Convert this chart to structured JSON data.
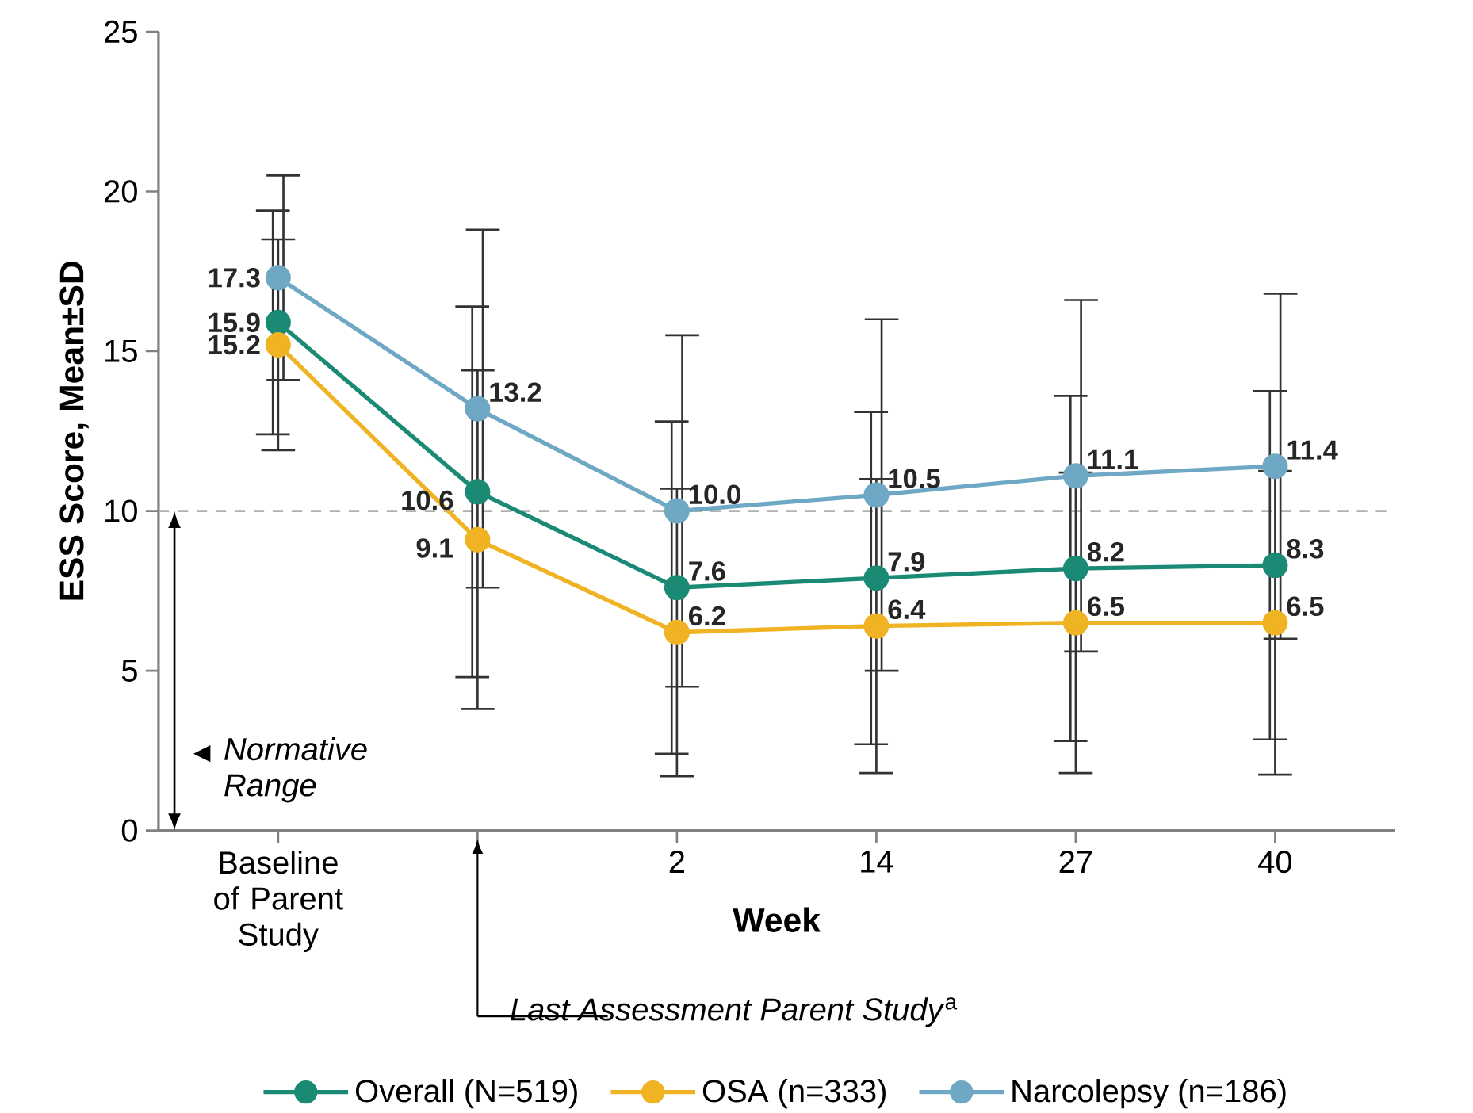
{
  "chart_data": {
    "type": "line",
    "xlabel": "Week",
    "ylabel": "ESS Score, Mean±SD",
    "categories": [
      "Baseline of Parent Study",
      null,
      "2",
      "14",
      "27",
      "40"
    ],
    "series": [
      {
        "name": "Overall (N=519)",
        "color": "#1a8a74",
        "values": [
          15.9,
          10.6,
          7.6,
          7.9,
          8.2,
          8.3
        ],
        "errors": [
          3.5,
          5.8,
          5.2,
          5.2,
          5.4,
          5.45
        ],
        "value_labels": [
          "15.9",
          "10.6",
          "7.6",
          "7.9",
          "8.2",
          "8.3"
        ]
      },
      {
        "name": "OSA (n=333)",
        "color": "#f0b323",
        "values": [
          15.2,
          9.1,
          6.2,
          6.4,
          6.5,
          6.5
        ],
        "errors": [
          3.3,
          5.3,
          4.5,
          4.6,
          4.7,
          4.75
        ],
        "value_labels": [
          "15.2",
          "9.1",
          "6.2",
          "6.4",
          "6.5",
          "6.5"
        ]
      },
      {
        "name": "Narcolepsy (n=186)",
        "color": "#6fa8c4",
        "values": [
          17.3,
          13.2,
          10.0,
          10.5,
          11.1,
          11.4
        ],
        "errors": [
          3.2,
          5.6,
          5.5,
          5.5,
          5.5,
          5.4
        ],
        "value_labels": [
          "17.3",
          "13.2",
          "10.0",
          "10.5",
          "11.1",
          "11.4"
        ]
      }
    ],
    "ylim": [
      0,
      25
    ],
    "yticks": [
      0,
      5,
      10,
      15,
      20,
      25
    ],
    "ref_lines": [
      {
        "axis": "y",
        "value": 10,
        "color": "#b0b0b0",
        "line_style": "dashed"
      }
    ],
    "annotations": [
      "*Normative Range*",
      "*Last Assessment Parent Study*$^{a}$"
    ],
    "marker": "circle",
    "line_style": "solid",
    "legend": "bottom",
    "grid": false
  }
}
